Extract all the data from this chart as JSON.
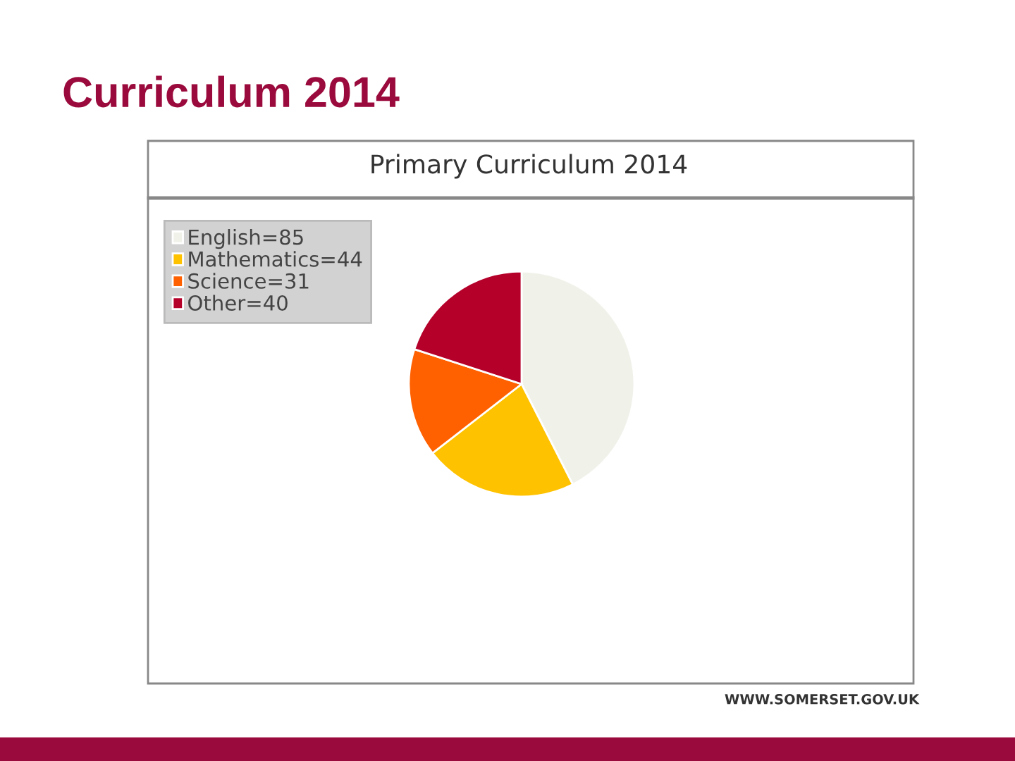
{
  "chart_data": {
    "type": "pie",
    "title": "Curriculum 2014",
    "subtitle": "Primary Curriculum 2014",
    "categories": [
      "English=85",
      "Mathematics=44",
      "Science=31",
      "Other=40"
    ],
    "values": [
      85,
      44,
      31,
      40
    ],
    "colors": [
      "#f0f2ea",
      "#ffc200",
      "#ff6000",
      "#b5002a"
    ],
    "legend": "top left",
    "annotations": [
      "WWW.SOMERSET.GOV.UK"
    ]
  }
}
